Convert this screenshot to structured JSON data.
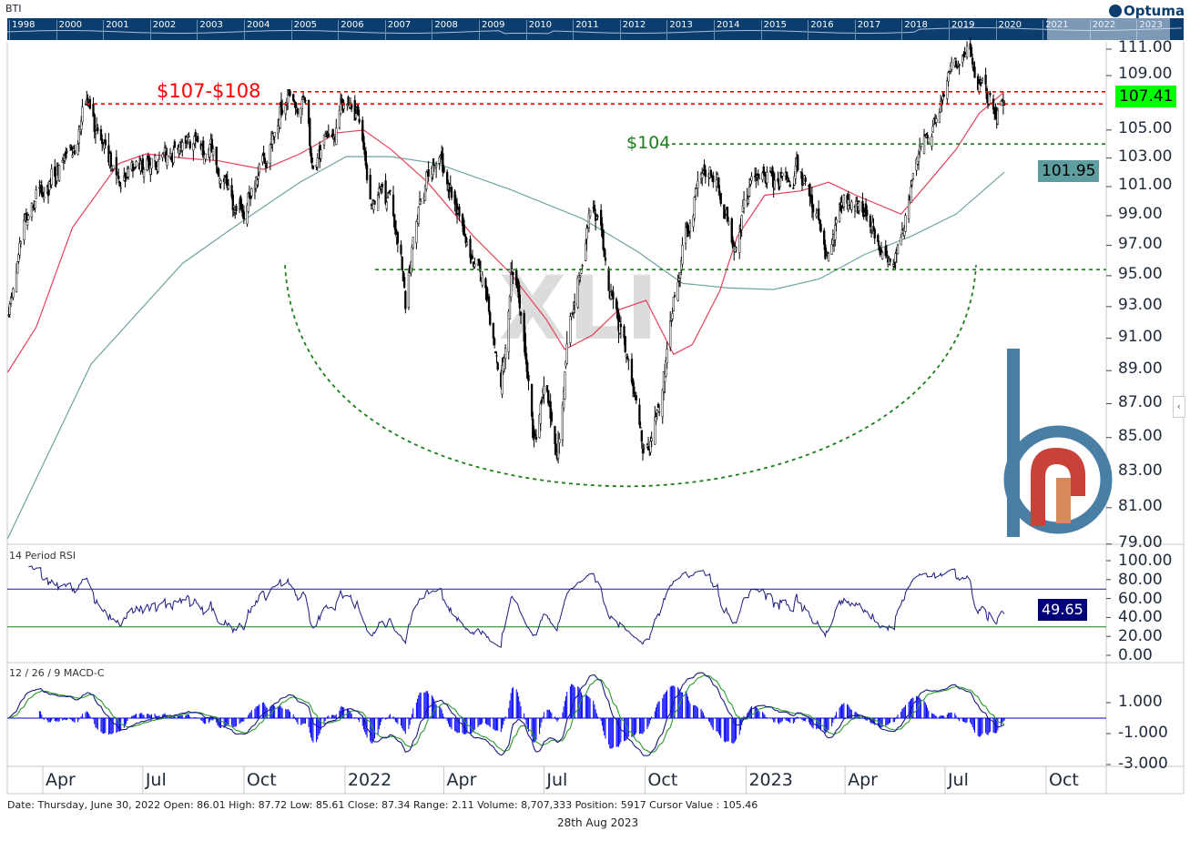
{
  "header": {
    "symbol": "BTI",
    "brand": "Optuma",
    "navigator_years": [
      "1998",
      "2000",
      "2001",
      "2002",
      "2003",
      "2004",
      "2005",
      "2006",
      "2007",
      "2008",
      "2009",
      "2010",
      "2011",
      "2012",
      "2013",
      "2014",
      "2015",
      "2016",
      "2017",
      "2018",
      "2019",
      "2020",
      "2021",
      "2022",
      "2023"
    ]
  },
  "chart_data": {
    "type": "candlestick",
    "x_unit": "days since 2021-04-01",
    "watermark": "XLI",
    "price_axis": {
      "scale": "log",
      "ticks": [
        "111.00",
        "109.00",
        "105.00",
        "103.00",
        "101.00",
        "99.00",
        "97.00",
        "95.00",
        "93.00",
        "91.00",
        "89.00",
        "87.00",
        "85.00",
        "83.00",
        "81.00",
        "79.00"
      ],
      "range": [
        78.5,
        112.5
      ]
    },
    "x_ticks": [
      {
        "label": "Apr",
        "day": 0
      },
      {
        "label": "Jul",
        "day": 91
      },
      {
        "label": "Oct",
        "day": 183
      },
      {
        "label": "2022",
        "day": 275
      },
      {
        "label": "Apr",
        "day": 365
      },
      {
        "label": "Jul",
        "day": 456
      },
      {
        "label": "Oct",
        "day": 548
      },
      {
        "label": "2023",
        "day": 640
      },
      {
        "label": "Apr",
        "day": 730
      },
      {
        "label": "Jul",
        "day": 821
      },
      {
        "label": "Oct",
        "day": 913
      }
    ],
    "price_path": [
      [
        -32,
        92
      ],
      [
        -22,
        96
      ],
      [
        -6,
        100
      ],
      [
        19,
        103
      ],
      [
        40,
        106
      ],
      [
        52,
        105
      ],
      [
        69,
        103
      ],
      [
        102,
        103
      ],
      [
        127,
        104
      ],
      [
        152,
        104
      ],
      [
        168,
        101
      ],
      [
        185,
        99
      ],
      [
        201,
        103
      ],
      [
        222,
        107
      ],
      [
        239,
        106
      ],
      [
        247,
        101
      ],
      [
        259,
        104
      ],
      [
        280,
        107
      ],
      [
        288,
        105
      ],
      [
        297,
        100
      ],
      [
        309,
        101
      ],
      [
        326,
        97
      ],
      [
        330,
        94
      ],
      [
        342,
        100
      ],
      [
        359,
        103
      ],
      [
        375,
        100
      ],
      [
        392,
        96
      ],
      [
        409,
        92
      ],
      [
        417,
        89
      ],
      [
        429,
        96
      ],
      [
        438,
        91
      ],
      [
        446,
        86
      ],
      [
        458,
        88
      ],
      [
        468,
        85
      ],
      [
        479,
        92
      ],
      [
        491,
        97
      ],
      [
        500,
        100
      ],
      [
        508,
        98
      ],
      [
        516,
        94
      ],
      [
        529,
        92
      ],
      [
        537,
        88
      ],
      [
        545,
        84
      ],
      [
        554,
        85
      ],
      [
        562,
        88
      ],
      [
        574,
        93
      ],
      [
        583,
        97
      ],
      [
        591,
        100
      ],
      [
        603,
        102
      ],
      [
        616,
        101
      ],
      [
        628,
        97
      ],
      [
        641,
        101
      ],
      [
        657,
        102
      ],
      [
        674,
        102
      ],
      [
        690,
        101
      ],
      [
        703,
        100
      ],
      [
        715,
        96
      ],
      [
        728,
        100
      ],
      [
        744,
        101
      ],
      [
        761,
        98
      ],
      [
        781,
        98
      ],
      [
        794,
        101
      ],
      [
        806,
        105
      ],
      [
        819,
        107
      ],
      [
        827,
        110
      ],
      [
        839,
        110
      ],
      [
        848,
        109
      ],
      [
        860,
        107
      ],
      [
        868,
        106
      ],
      [
        875,
        106.5
      ]
    ],
    "moving_average_short": {
      "color": "#e8405a",
      "points": [
        [
          -32,
          88.9
        ],
        [
          -6,
          91.7
        ],
        [
          27,
          98.2
        ],
        [
          69,
          102.6
        ],
        [
          94,
          103.3
        ],
        [
          127,
          103
        ],
        [
          160,
          102.8
        ],
        [
          201,
          102.2
        ],
        [
          234,
          103.3
        ],
        [
          268,
          104.8
        ],
        [
          292,
          105
        ],
        [
          317,
          103.6
        ],
        [
          350,
          101.3
        ],
        [
          392,
          97.6
        ],
        [
          425,
          95.2
        ],
        [
          458,
          92.2
        ],
        [
          475,
          90.3
        ],
        [
          500,
          91.2
        ],
        [
          524,
          92.8
        ],
        [
          549,
          93.4
        ],
        [
          574,
          90
        ],
        [
          591,
          90.6
        ],
        [
          616,
          94
        ],
        [
          632,
          97.6
        ],
        [
          657,
          100.4
        ],
        [
          690,
          100.7
        ],
        [
          715,
          101.3
        ],
        [
          740,
          100.4
        ],
        [
          781,
          99.1
        ],
        [
          806,
          101.3
        ],
        [
          831,
          103.6
        ],
        [
          852,
          106.2
        ],
        [
          875,
          107.8
        ]
      ]
    },
    "moving_average_long": {
      "color": "#6fa3a0",
      "points": [
        [
          -32,
          79.3
        ],
        [
          44,
          89.4
        ],
        [
          127,
          95.8
        ],
        [
          185,
          98.8
        ],
        [
          234,
          101.3
        ],
        [
          276,
          103.1
        ],
        [
          317,
          103.1
        ],
        [
          359,
          102.6
        ],
        [
          425,
          100.8
        ],
        [
          491,
          98.8
        ],
        [
          541,
          96.6
        ],
        [
          582,
          94.5
        ],
        [
          624,
          94.2
        ],
        [
          665,
          94.1
        ],
        [
          707,
          94.8
        ],
        [
          748,
          96.4
        ],
        [
          790,
          97.6
        ],
        [
          831,
          99.1
        ],
        [
          875,
          102
        ]
      ]
    },
    "annotations": {
      "resistance_label": "$107-$108",
      "resistance_levels": [
        107.8,
        106.9
      ],
      "support_label": "$104",
      "support_level": 104.0,
      "neckline_level": 95.4,
      "base_arc_low": 82.2,
      "last_price": "107.41",
      "last_ma": "101.95"
    },
    "rsi": {
      "title": "14 Period RSI",
      "period": 14,
      "upper": 70,
      "lower": 30,
      "ticks": [
        "100.00",
        "80.00",
        "60.00",
        "40.00",
        "20.00",
        "0.00"
      ],
      "last": "49.65"
    },
    "macd": {
      "title": "12 / 26 / 9 MACD-C",
      "fast": 12,
      "slow": 26,
      "signal": 9,
      "ticks": [
        "1.000",
        "-1.000",
        "-3.000"
      ]
    }
  },
  "footer": {
    "status": "Date: Thursday, June 30, 2022 Open: 86.01 High: 87.72 Low: 85.61 Close: 87.34 Range: 2.11 Volume: 8,707,333 Position: 5917 Cursor Value : 105.46",
    "print_date": "28th Aug 2023"
  },
  "colors": {
    "nav_bg": "#0b3d6e",
    "resistance": "#ff0000",
    "support": "#1a7f1a",
    "last_price_bg": "#00ff00",
    "ma_tag_bg": "#5f9ea0",
    "rsi_line": "#1a1a80",
    "macd_hist": "#0000ff",
    "logo_blue": "#4a7fa5",
    "logo_red": "#c8423a"
  }
}
